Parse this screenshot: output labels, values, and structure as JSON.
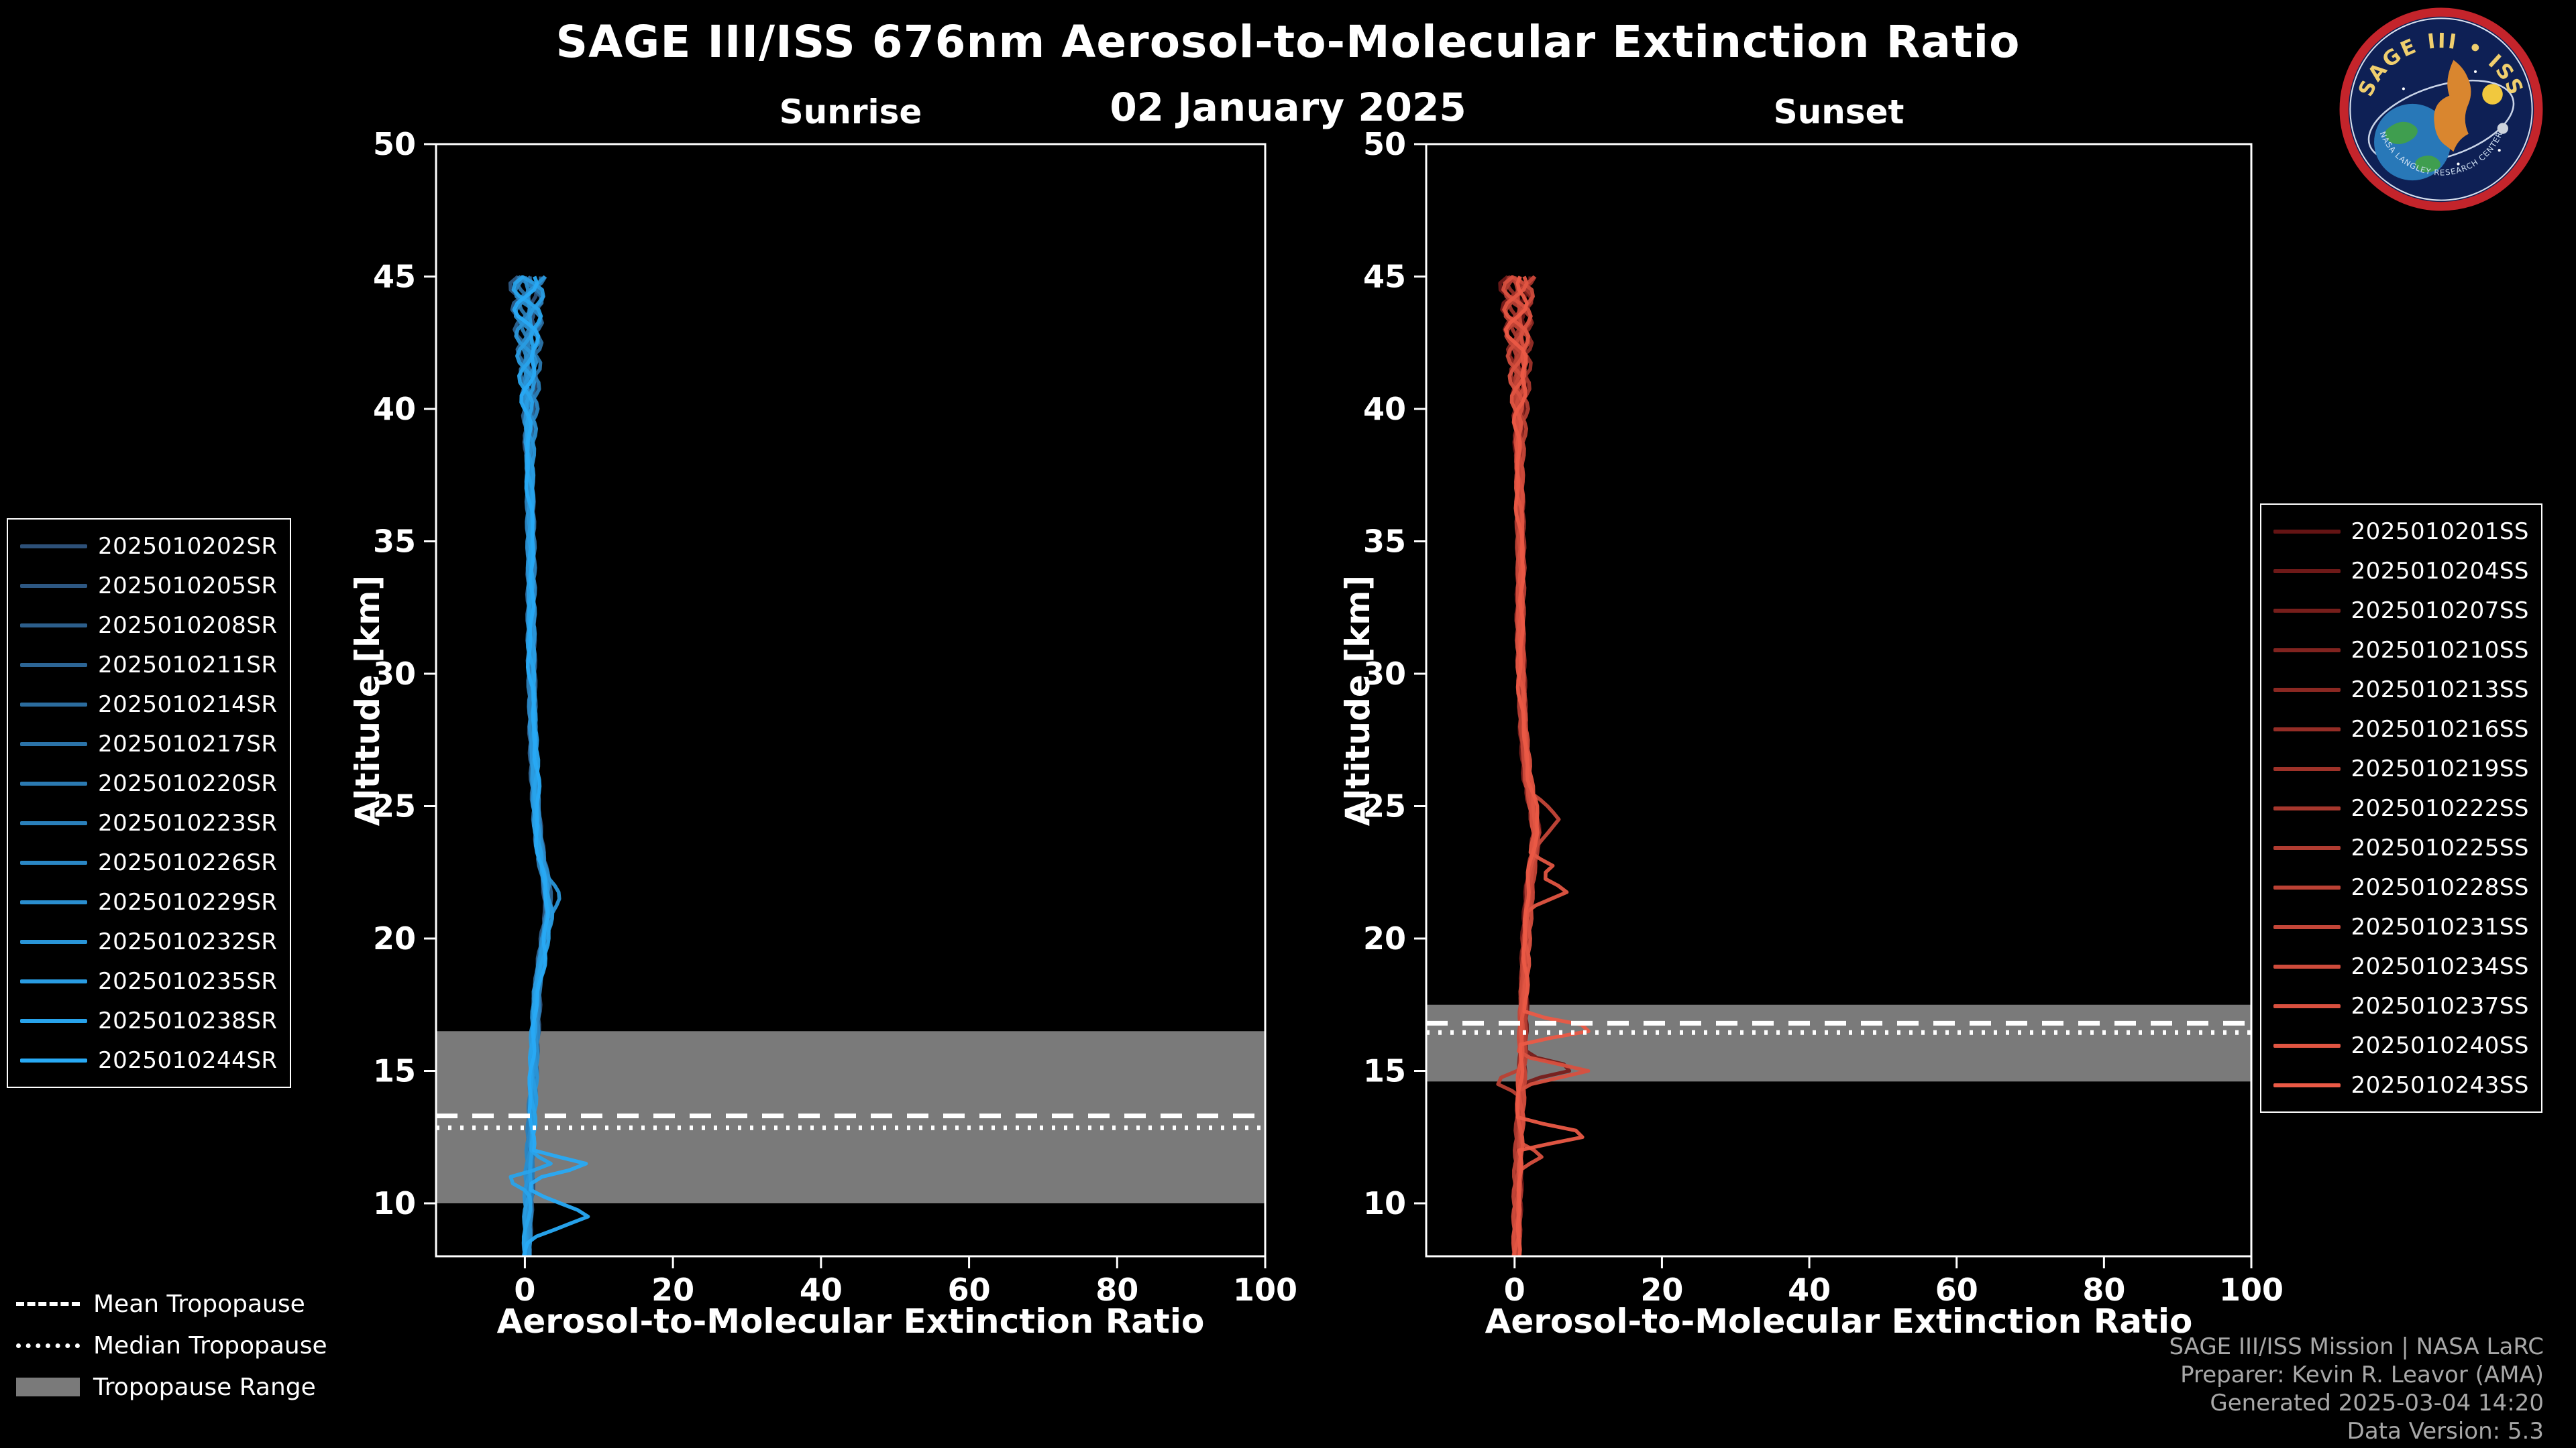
{
  "header": {
    "title": "SAGE III/ISS 676nm Aerosol-to-Molecular Extinction Ratio",
    "date": "02 January 2025"
  },
  "chart_data": {
    "type": "line",
    "panels": [
      {
        "title": "Sunrise",
        "xlabel": "Aerosol-to-Molecular Extinction Ratio",
        "ylabel": "Altitude [km]",
        "xlim": [
          -12,
          100
        ],
        "ylim": [
          8,
          50
        ],
        "xticks": [
          0,
          20,
          40,
          60,
          80,
          100
        ],
        "yticks": [
          10,
          15,
          20,
          25,
          30,
          35,
          40,
          45,
          50
        ],
        "tropopause": {
          "mean_km": 13.3,
          "median_km": 12.85,
          "range_km": [
            10.0,
            16.5
          ]
        },
        "base_profile": [
          [
            8,
            0.3
          ],
          [
            10,
            0.5
          ],
          [
            12,
            0.8
          ],
          [
            14,
            1.0
          ],
          [
            16,
            1.2
          ],
          [
            18,
            1.6
          ],
          [
            20,
            2.6
          ],
          [
            21,
            3.2
          ],
          [
            22,
            2.9
          ],
          [
            23,
            2.2
          ],
          [
            24,
            1.8
          ],
          [
            26,
            1.4
          ],
          [
            28,
            1.1
          ],
          [
            30,
            1.0
          ],
          [
            32,
            0.9
          ],
          [
            34,
            0.8
          ],
          [
            36,
            0.7
          ],
          [
            38,
            0.6
          ],
          [
            40,
            0.5
          ],
          [
            42,
            0.5
          ],
          [
            44,
            0.5
          ],
          [
            45,
            0.5
          ]
        ],
        "series": [
          {
            "name": "2025010202SR",
            "color": "#2D5078"
          },
          {
            "name": "2025010205SR",
            "color": "#2D5782"
          },
          {
            "name": "2025010208SR",
            "color": "#2C5E8B"
          },
          {
            "name": "2025010211SR",
            "color": "#2C6595"
          },
          {
            "name": "2025010214SR",
            "color": "#2B6C9E"
          },
          {
            "name": "2025010217SR",
            "color": "#2B73A8"
          },
          {
            "name": "2025010220SR",
            "color": "#2B7AB2"
          },
          {
            "name": "2025010223SR",
            "color": "#2A80BB"
          },
          {
            "name": "2025010226SR",
            "color": "#2A87C5"
          },
          {
            "name": "2025010229SR",
            "color": "#2A8ECF"
          },
          {
            "name": "2025010232SR",
            "color": "#2995D8",
            "spikes": [
              [
                21.6,
                4.8,
                0.8
              ]
            ]
          },
          {
            "name": "2025010235SR",
            "color": "#299CE2"
          },
          {
            "name": "2025010238SR",
            "color": "#28A3EB",
            "spikes": [
              [
                10.9,
                -2.6,
                0.5
              ],
              [
                11.5,
                3.5,
                0.4
              ]
            ]
          },
          {
            "name": "2025010244SR",
            "color": "#28AAF5",
            "spikes": [
              [
                11.45,
                9.0,
                0.55
              ],
              [
                9.55,
                9.0,
                0.9
              ]
            ]
          }
        ]
      },
      {
        "title": "Sunset",
        "xlabel": "Aerosol-to-Molecular Extinction Ratio",
        "ylabel": "Altitude [km]",
        "xlim": [
          -12,
          100
        ],
        "ylim": [
          8,
          50
        ],
        "xticks": [
          0,
          20,
          40,
          60,
          80,
          100
        ],
        "yticks": [
          10,
          15,
          20,
          25,
          30,
          35,
          40,
          45,
          50
        ],
        "tropopause": {
          "mean_km": 16.8,
          "median_km": 16.45,
          "range_km": [
            14.6,
            17.5
          ]
        },
        "base_profile": [
          [
            8,
            0.3
          ],
          [
            10,
            0.4
          ],
          [
            12,
            0.6
          ],
          [
            14,
            0.8
          ],
          [
            16,
            1.0
          ],
          [
            18,
            1.2
          ],
          [
            20,
            1.5
          ],
          [
            22,
            2.0
          ],
          [
            23,
            2.5
          ],
          [
            24,
            3.0
          ],
          [
            25,
            2.5
          ],
          [
            26,
            1.8
          ],
          [
            28,
            1.2
          ],
          [
            30,
            1.0
          ],
          [
            32,
            0.8
          ],
          [
            34,
            0.8
          ],
          [
            36,
            0.7
          ],
          [
            38,
            0.6
          ],
          [
            40,
            0.6
          ],
          [
            42,
            0.6
          ],
          [
            44,
            0.5
          ],
          [
            45,
            0.5
          ]
        ],
        "series": [
          {
            "name": "2025010201SS",
            "color": "#641414"
          },
          {
            "name": "2025010204SS",
            "color": "#6E1918"
          },
          {
            "name": "2025010207SS",
            "color": "#771E1B",
            "spikes": [
              [
                15.1,
                9.0,
                0.5
              ]
            ]
          },
          {
            "name": "2025010210SS",
            "color": "#81231F"
          },
          {
            "name": "2025010213SS",
            "color": "#8B2822"
          },
          {
            "name": "2025010216SS",
            "color": "#942D26"
          },
          {
            "name": "2025010219SS",
            "color": "#9E3229"
          },
          {
            "name": "2025010222SS",
            "color": "#A7372D"
          },
          {
            "name": "2025010225SS",
            "color": "#B13C31"
          },
          {
            "name": "2025010228SS",
            "color": "#BB4134",
            "spikes": [
              [
                14.6,
                -3.0,
                0.5
              ]
            ]
          },
          {
            "name": "2025010231SS",
            "color": "#C44638",
            "spikes": [
              [
                24.5,
                6.0,
                1.1
              ]
            ]
          },
          {
            "name": "2025010234SS",
            "color": "#CE4B3B"
          },
          {
            "name": "2025010237SS",
            "color": "#D8503F",
            "spikes": [
              [
                15.0,
                10.0,
                0.6
              ],
              [
                11.8,
                4.0,
                0.5
              ]
            ]
          },
          {
            "name": "2025010240SS",
            "color": "#E15542",
            "spikes": [
              [
                21.8,
                7.5,
                0.7
              ],
              [
                22.7,
                5.5,
                0.5
              ]
            ]
          },
          {
            "name": "2025010243SS",
            "color": "#EB5A46",
            "spikes": [
              [
                16.6,
                12.0,
                0.55
              ],
              [
                12.6,
                11.0,
                0.6
              ]
            ]
          }
        ]
      }
    ]
  },
  "tropopause_legend": {
    "items": [
      {
        "label": "Mean Tropopause",
        "style": "dashed"
      },
      {
        "label": "Median Tropopause",
        "style": "dotted"
      },
      {
        "label": "Tropopause Range",
        "style": "band"
      }
    ]
  },
  "credits": {
    "line1": "SAGE III/ISS Mission | NASA LaRC",
    "line2": "Preparer: Kevin R. Leavor (AMA)",
    "line3": "Generated 2025-03-04 14:20",
    "line4": "Data Version: 5.3"
  },
  "logo": {
    "title": "SAGE III • ISS",
    "ring_text": "NASA LANGLEY RESEARCH CENTER"
  },
  "colors": {
    "background": "#000000",
    "axis": "#ffffff",
    "tropopause_band": "#7a7a7a",
    "tropopause_line": "#ffffff"
  }
}
